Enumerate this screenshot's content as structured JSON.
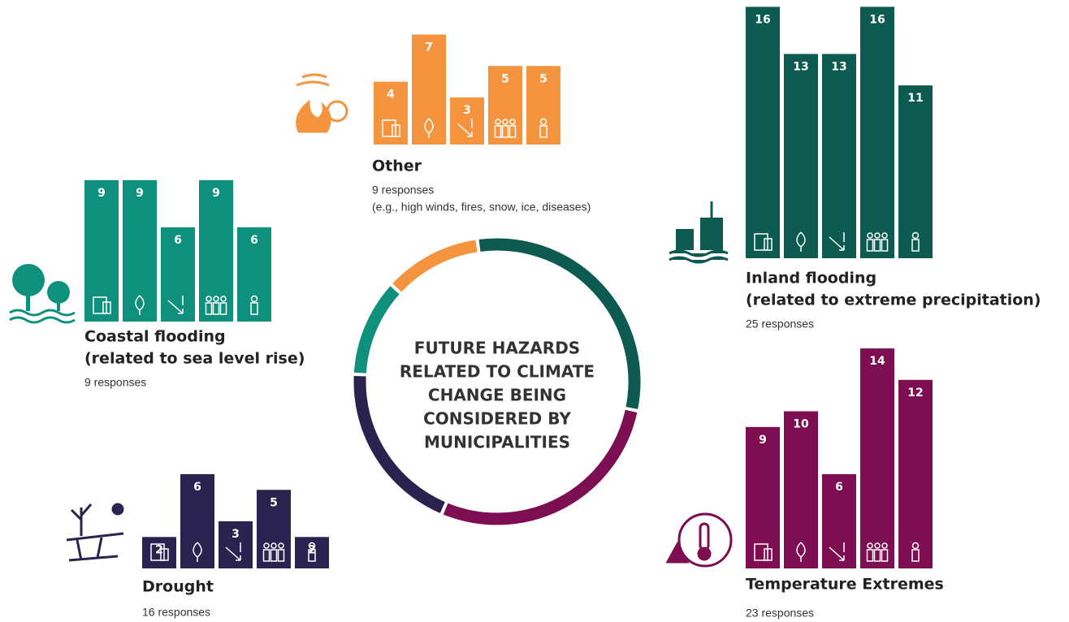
{
  "title": [
    "FUTURE HAZARDS",
    "RELATED TO CLIMATE",
    "CHANGE BEING",
    "CONSIDERED BY",
    "MUNICIPALITIES"
  ],
  "chart_data": [
    {
      "type": "bar",
      "title": [
        "Other"
      ],
      "responses": 9,
      "responses_label": "9 responses",
      "note": "(e.g., high winds, fires, snow, ice, diseases)",
      "color": "#f4943f",
      "values": [
        4,
        7,
        3,
        5,
        5
      ]
    },
    {
      "type": "bar",
      "title": [
        "Coastal flooding",
        "(related to sea level rise)"
      ],
      "responses": 9,
      "responses_label": "9 responses",
      "color": "#0e907c",
      "values": [
        9,
        9,
        6,
        9,
        6
      ]
    },
    {
      "type": "bar",
      "title": [
        "Inland flooding",
        "(related to extreme precipitation)"
      ],
      "responses": 25,
      "responses_label": "25 responses",
      "color": "#0d5a50",
      "values": [
        16,
        13,
        13,
        16,
        11
      ]
    },
    {
      "type": "bar",
      "title": [
        "Temperature Extremes"
      ],
      "responses": 23,
      "responses_label": "23 responses",
      "color": "#7d0e52",
      "values": [
        9,
        10,
        6,
        14,
        12
      ]
    },
    {
      "type": "bar",
      "title": [
        "Drought"
      ],
      "responses": 16,
      "responses_label": "16 responses",
      "color": "#2a2350",
      "values": [
        2,
        6,
        3,
        5,
        2
      ]
    }
  ]
}
